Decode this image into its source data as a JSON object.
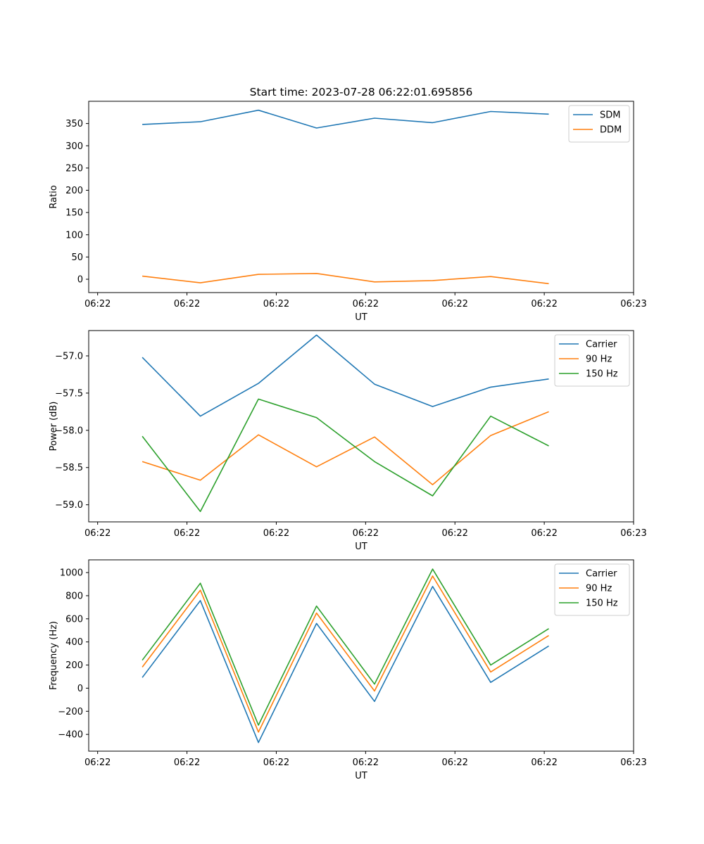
{
  "figure_title": "Start time: 2023-07-28 06:22:01.695856",
  "colors": {
    "blue": "#1f77b4",
    "orange": "#ff7f0e",
    "green": "#2ca02c"
  },
  "chart_data": [
    {
      "type": "line",
      "title": "Start time: 2023-07-28 06:22:01.695856",
      "xlabel": "UT",
      "ylabel": "Ratio",
      "x_ticks": [
        "06:22",
        "06:22",
        "06:22",
        "06:22",
        "06:22",
        "06:22",
        "06:23"
      ],
      "xlim": [
        -0.1,
        6.0
      ],
      "ylim": [
        -30,
        400
      ],
      "y_ticks": [
        0,
        50,
        100,
        150,
        200,
        250,
        300,
        350
      ],
      "y_tick_labels": [
        "0",
        "50",
        "100",
        "150",
        "200",
        "250",
        "300",
        "350"
      ],
      "legend_position": "top-right",
      "x": [
        0.5,
        1.15,
        1.8,
        2.45,
        3.1,
        3.75,
        4.4,
        5.05
      ],
      "series": [
        {
          "name": "SDM",
          "color": "#1f77b4",
          "values": [
            348,
            354,
            380,
            340,
            362,
            352,
            377,
            371
          ]
        },
        {
          "name": "DDM",
          "color": "#ff7f0e",
          "values": [
            7,
            -8,
            11,
            13,
            -6,
            -3,
            6,
            -10
          ]
        }
      ]
    },
    {
      "type": "line",
      "title": "",
      "xlabel": "UT",
      "ylabel": "Power (dB)",
      "x_ticks": [
        "06:22",
        "06:22",
        "06:22",
        "06:22",
        "06:22",
        "06:22",
        "06:23"
      ],
      "xlim": [
        -0.1,
        6.0
      ],
      "ylim": [
        -59.23,
        -56.66
      ],
      "y_ticks": [
        -59.0,
        -58.5,
        -58.0,
        -57.5,
        -57.0
      ],
      "y_tick_labels": [
        "−59.0",
        "−58.5",
        "−58.0",
        "−57.5",
        "−57.0"
      ],
      "legend_position": "top-right",
      "x": [
        0.5,
        1.15,
        1.8,
        2.45,
        3.1,
        3.75,
        4.4,
        5.05
      ],
      "series": [
        {
          "name": "Carrier",
          "color": "#1f77b4",
          "values": [
            -57.02,
            -57.81,
            -57.37,
            -56.72,
            -57.38,
            -57.68,
            -57.42,
            -57.31
          ]
        },
        {
          "name": "90 Hz",
          "color": "#ff7f0e",
          "values": [
            -58.42,
            -58.67,
            -58.06,
            -58.49,
            -58.09,
            -58.73,
            -58.07,
            -57.75
          ]
        },
        {
          "name": "150 Hz",
          "color": "#2ca02c",
          "values": [
            -58.08,
            -59.09,
            -57.58,
            -57.83,
            -58.42,
            -58.88,
            -57.81,
            -58.21
          ]
        }
      ]
    },
    {
      "type": "line",
      "title": "",
      "xlabel": "UT",
      "ylabel": "Frequency (Hz)",
      "x_ticks": [
        "06:22",
        "06:22",
        "06:22",
        "06:22",
        "06:22",
        "06:22",
        "06:23"
      ],
      "xlim": [
        -0.1,
        6.0
      ],
      "ylim": [
        -545,
        1110
      ],
      "y_ticks": [
        -400,
        -200,
        0,
        200,
        400,
        600,
        800,
        1000
      ],
      "y_tick_labels": [
        "−400",
        "−200",
        "0",
        "200",
        "400",
        "600",
        "800",
        "1000"
      ],
      "legend_position": "top-right",
      "x": [
        0.5,
        1.15,
        1.8,
        2.45,
        3.1,
        3.75,
        4.4,
        5.05
      ],
      "series": [
        {
          "name": "Carrier",
          "color": "#1f77b4",
          "values": [
            92,
            758,
            -470,
            560,
            -115,
            880,
            50,
            365
          ]
        },
        {
          "name": "90 Hz",
          "color": "#ff7f0e",
          "values": [
            182,
            848,
            -380,
            650,
            -25,
            970,
            140,
            455
          ]
        },
        {
          "name": "150 Hz",
          "color": "#2ca02c",
          "values": [
            242,
            908,
            -320,
            710,
            35,
            1030,
            200,
            515
          ]
        }
      ]
    }
  ]
}
